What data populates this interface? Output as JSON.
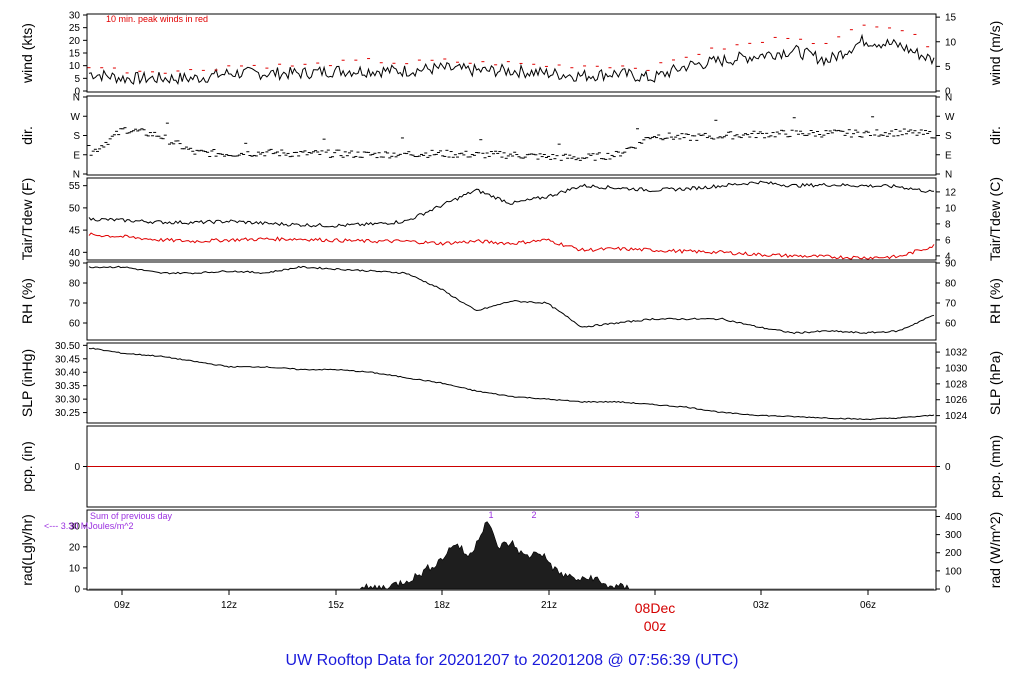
{
  "title": "UW Rooftop Data for 20201207  to  20201208 @ 07:56:39  (UTC)",
  "colors": {
    "line": "#000000",
    "peak": "#e00000",
    "dew": "#e00000",
    "zero": "#cc0000",
    "title": "#1a1adb",
    "annot": "#9b30e0"
  },
  "x_axis": {
    "ticks": [
      "09z",
      "12z",
      "15z",
      "18z",
      "21z",
      "",
      "03z",
      "06z"
    ],
    "date_label": "08Dec",
    "midnight_label": "00z"
  },
  "chart_data": [
    {
      "type": "line",
      "name": "wind",
      "ylabel": "wind (kts)",
      "ylabel_right": "wind (m/s)",
      "annotation": "10 min. peak winds in red",
      "ylim": [
        0,
        30
      ],
      "yticks_left": [
        "30",
        "25",
        "20",
        "15",
        "10",
        "5",
        "0"
      ],
      "yticks_right": [
        "15",
        "10",
        "5",
        "0"
      ],
      "x_hours": [
        0,
        1,
        2,
        3,
        4,
        5,
        6,
        7,
        8,
        9,
        10,
        11,
        12,
        13,
        14,
        15,
        16,
        17,
        18,
        19,
        20,
        21,
        22,
        23,
        24
      ],
      "series": [
        {
          "values": [
            7,
            5,
            5,
            5,
            7,
            7,
            7,
            8,
            8,
            8,
            9,
            8,
            8,
            7,
            6,
            7,
            5,
            10,
            12,
            14,
            16,
            12,
            20,
            18,
            12
          ]
        },
        {
          "values": [
            10,
            8,
            8,
            8,
            10,
            10,
            10,
            11,
            12,
            11,
            12,
            11,
            11,
            10,
            10,
            10,
            9,
            14,
            17,
            19,
            22,
            18,
            27,
            25,
            17
          ]
        }
      ]
    },
    {
      "type": "scatter",
      "name": "dir",
      "ylabel": "dir.",
      "ylabel_right": "dir.",
      "yticks_left": [
        "N",
        "W",
        "S",
        "E",
        "N"
      ],
      "yticks_right": [
        "N",
        "W",
        "S",
        "E",
        "N"
      ],
      "ylim": [
        0,
        360
      ],
      "x_hours": [
        0,
        1,
        2,
        3,
        4,
        5,
        6,
        7,
        8,
        9,
        10,
        11,
        12,
        13,
        14,
        15,
        16,
        17,
        18,
        19,
        20,
        21,
        22,
        23,
        24
      ],
      "series": [
        {
          "values": [
            90,
            210,
            180,
            100,
            95,
            100,
            95,
            95,
            90,
            95,
            95,
            90,
            90,
            80,
            75,
            90,
            180,
            170,
            180,
            185,
            190,
            190,
            190,
            195,
            185
          ]
        }
      ]
    },
    {
      "type": "line",
      "name": "temp",
      "ylabel": "Tair/Tdew (F)",
      "ylabel_right": "Tair/Tdew (C)",
      "yticks_left": [
        "55",
        "50",
        "45",
        "40"
      ],
      "yticks_right": [
        "12",
        "10",
        "8",
        "6",
        "4"
      ],
      "ylim": [
        38.5,
        56.5
      ],
      "x_hours": [
        0,
        1,
        2,
        3,
        4,
        5,
        6,
        7,
        8,
        9,
        10,
        11,
        12,
        13,
        14,
        15,
        16,
        17,
        18,
        19,
        20,
        21,
        22,
        23,
        24
      ],
      "series": [
        {
          "name": "Tair",
          "values": [
            47.5,
            47.2,
            46.8,
            46.7,
            47.0,
            46.5,
            46.2,
            46.0,
            46.3,
            47.0,
            50.5,
            54.0,
            51.0,
            52.5,
            55.0,
            54.5,
            54.0,
            54.3,
            55.0,
            55.8,
            55.0,
            55.2,
            55.0,
            54.8,
            53.5
          ]
        },
        {
          "name": "Tdew",
          "values": [
            44.0,
            43.5,
            42.8,
            42.5,
            42.8,
            43.0,
            43.0,
            42.7,
            42.5,
            42.5,
            42.0,
            42.5,
            42.0,
            42.8,
            40.5,
            40.8,
            40.5,
            40.2,
            40.0,
            39.5,
            39.2,
            39.0,
            38.8,
            39.0,
            41.5
          ]
        }
      ]
    },
    {
      "type": "line",
      "name": "rh",
      "ylabel": "RH (%)",
      "ylabel_right": "RH (%)",
      "yticks_left": [
        "90",
        "80",
        "70",
        "60"
      ],
      "yticks_right": [
        "90",
        "80",
        "70",
        "60"
      ],
      "ylim": [
        52,
        90
      ],
      "x_hours": [
        0,
        1,
        2,
        3,
        4,
        5,
        6,
        7,
        8,
        9,
        10,
        11,
        12,
        13,
        14,
        15,
        16,
        17,
        18,
        19,
        20,
        21,
        22,
        23,
        24
      ],
      "series": [
        {
          "values": [
            88,
            88,
            85,
            85,
            86,
            85,
            88,
            87,
            86,
            85,
            77,
            66,
            71,
            70,
            58,
            60,
            62,
            62,
            62,
            58,
            55,
            56,
            55,
            56,
            64
          ]
        }
      ]
    },
    {
      "type": "line",
      "name": "slp",
      "ylabel": "SLP (inHg)",
      "ylabel_right": "SLP (hPa)",
      "yticks_left": [
        "30.50",
        "30.45",
        "30.40",
        "30.35",
        "30.30",
        "30.25"
      ],
      "yticks_right": [
        "1032",
        "1030",
        "1028",
        "1026",
        "1024"
      ],
      "ylim": [
        30.215,
        30.505
      ],
      "x_hours": [
        0,
        1,
        2,
        3,
        4,
        5,
        6,
        7,
        8,
        9,
        10,
        11,
        12,
        13,
        14,
        15,
        16,
        17,
        18,
        19,
        20,
        21,
        22,
        23,
        24
      ],
      "series": [
        {
          "values": [
            30.49,
            30.47,
            30.46,
            30.44,
            30.42,
            30.42,
            30.41,
            30.41,
            30.4,
            30.38,
            30.36,
            30.33,
            30.31,
            30.3,
            30.29,
            30.29,
            30.28,
            30.27,
            30.25,
            30.24,
            30.235,
            30.23,
            30.225,
            30.23,
            30.24
          ]
        }
      ]
    },
    {
      "type": "line",
      "name": "pcp",
      "ylabel": "pcp. (in)",
      "ylabel_right": "pcp. (mm)",
      "yticks_left": [
        "0"
      ],
      "yticks_right": [
        "0"
      ],
      "ylim": [
        -1,
        1
      ],
      "series": [
        {
          "values": [
            0,
            0
          ]
        }
      ]
    },
    {
      "type": "area",
      "name": "rad",
      "ylabel": "rad(Lgly/hr)",
      "ylabel_right": "rad (W/m^2)",
      "yticks_left": [
        "30",
        "20",
        "10",
        "0"
      ],
      "yticks_right": [
        "400",
        "300",
        "200",
        "100",
        "0"
      ],
      "ylim": [
        0,
        37
      ],
      "annotation_1": "Sum of previous day",
      "annotation_2": "<--- 3.30 MJoules/m^2",
      "markers": [
        "1",
        "2",
        "3"
      ],
      "x_hours": [
        0,
        7.5,
        8.5,
        9.3,
        10,
        10.4,
        10.8,
        11.3,
        11.6,
        12,
        12.4,
        12.8,
        13.3,
        13.6,
        14,
        14.3,
        14.6,
        15.5,
        24
      ],
      "series": [
        {
          "values": [
            0,
            0,
            1,
            6,
            14,
            22,
            15,
            33,
            20,
            22,
            15,
            18,
            8,
            6,
            4,
            6,
            2,
            0,
            0
          ]
        }
      ]
    }
  ]
}
